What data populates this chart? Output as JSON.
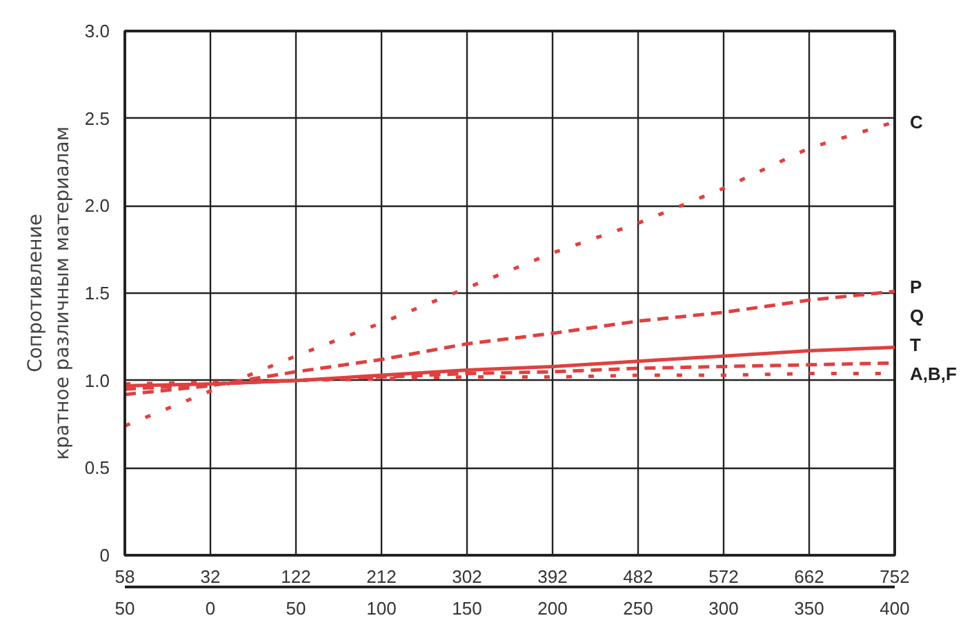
{
  "chart_data": {
    "type": "line",
    "ylabel": "Сопротивление\nкратное различным материалам",
    "xlim": [
      -50,
      400
    ],
    "ylim": [
      0,
      3
    ],
    "xticks": [
      {
        "value": -50,
        "label": "50"
      },
      0,
      50,
      100,
      150,
      200,
      250,
      300,
      350,
      400
    ],
    "x2lim": [
      -58,
      752
    ],
    "x2ticks": [
      {
        "value": -58,
        "label": "58"
      },
      32,
      122,
      212,
      302,
      392,
      482,
      572,
      662,
      752
    ],
    "yticks": [
      0,
      {
        "value": 0.5,
        "label": "0.5"
      },
      {
        "value": 1,
        "label": "1.0"
      },
      {
        "value": 1.5,
        "label": "1.5"
      },
      {
        "value": 2,
        "label": "2.0"
      },
      {
        "value": 2.5,
        "label": "2.5"
      },
      {
        "value": 3,
        "label": "3.0"
      }
    ],
    "x": [
      -50,
      0,
      50,
      100,
      150,
      200,
      250,
      300,
      350,
      400
    ],
    "series": [
      {
        "name": "C",
        "color": "#e04040",
        "line_style": "dotted",
        "values": [
          0.74,
          0.94,
          1.14,
          1.33,
          1.53,
          1.73,
          1.9,
          2.1,
          2.33,
          2.48
        ]
      },
      {
        "name": "P",
        "color": "#e04040",
        "line_style": "dashed",
        "values": [
          0.92,
          0.97,
          1.05,
          1.12,
          1.21,
          1.27,
          1.34,
          1.39,
          1.46,
          1.51
        ]
      },
      {
        "name": "Q",
        "color": "#e04040",
        "line_style": "solid",
        "values": [
          0.97,
          0.98,
          1.0,
          1.03,
          1.06,
          1.08,
          1.11,
          1.14,
          1.17,
          1.19
        ]
      },
      {
        "name": "T",
        "color": "#e04040",
        "line_style": "dashed",
        "values": [
          0.95,
          0.98,
          1.0,
          1.02,
          1.04,
          1.05,
          1.07,
          1.08,
          1.09,
          1.1
        ]
      },
      {
        "name": "A,B,F",
        "color": "#e04040",
        "line_style": "dotted",
        "values": [
          0.98,
          0.99,
          1.0,
          1.01,
          1.02,
          1.02,
          1.03,
          1.03,
          1.04,
          1.04
        ]
      }
    ],
    "grid": true,
    "legend": false
  }
}
